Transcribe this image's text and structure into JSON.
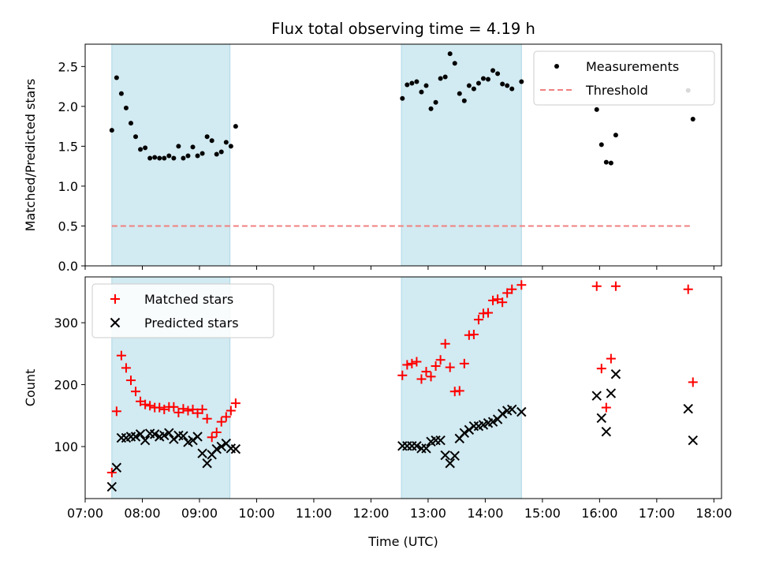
{
  "chart_data": [
    {
      "type": "scatter",
      "title": "Flux total observing time = 4.19 h",
      "xlabel": "",
      "ylabel": "Matched/Predicted stars",
      "xlim": [
        "07:00",
        "18:08"
      ],
      "ylim": [
        0,
        2.78
      ],
      "yticks": [
        0.0,
        0.5,
        1.0,
        1.5,
        2.0,
        2.5
      ],
      "ytick_labels": [
        "0.0",
        "0.5",
        "1.0",
        "1.5",
        "2.0",
        "2.5"
      ],
      "shaded_intervals": [
        [
          "07:28",
          "09:32"
        ],
        [
          "12:32",
          "14:38"
        ]
      ],
      "shade_color": "#add8e6",
      "legend": {
        "placement": "upper right",
        "entries": [
          "Measurements",
          "Threshold"
        ]
      },
      "series": [
        {
          "name": "Measurements",
          "marker": "dot",
          "color": "#000000",
          "points": [
            [
              "07:28",
              1.7
            ],
            [
              "07:33",
              2.36
            ],
            [
              "07:38",
              2.16
            ],
            [
              "07:43",
              1.98
            ],
            [
              "07:48",
              1.79
            ],
            [
              "07:53",
              1.62
            ],
            [
              "07:58",
              1.46
            ],
            [
              "08:03",
              1.48
            ],
            [
              "08:08",
              1.35
            ],
            [
              "08:13",
              1.36
            ],
            [
              "08:18",
              1.35
            ],
            [
              "08:23",
              1.35
            ],
            [
              "08:28",
              1.38
            ],
            [
              "08:33",
              1.35
            ],
            [
              "08:38",
              1.5
            ],
            [
              "08:43",
              1.35
            ],
            [
              "08:48",
              1.38
            ],
            [
              "08:53",
              1.49
            ],
            [
              "08:58",
              1.38
            ],
            [
              "09:03",
              1.41
            ],
            [
              "09:08",
              1.62
            ],
            [
              "09:13",
              1.57
            ],
            [
              "09:18",
              1.4
            ],
            [
              "09:23",
              1.43
            ],
            [
              "09:28",
              1.55
            ],
            [
              "09:33",
              1.5
            ],
            [
              "09:38",
              1.75
            ],
            [
              "12:33",
              2.1
            ],
            [
              "12:38",
              2.27
            ],
            [
              "12:43",
              2.29
            ],
            [
              "12:48",
              2.31
            ],
            [
              "12:53",
              2.18
            ],
            [
              "12:58",
              2.26
            ],
            [
              "13:03",
              1.97
            ],
            [
              "13:08",
              2.05
            ],
            [
              "13:13",
              2.35
            ],
            [
              "13:18",
              2.37
            ],
            [
              "13:23",
              2.66
            ],
            [
              "13:28",
              2.54
            ],
            [
              "13:33",
              2.16
            ],
            [
              "13:38",
              2.07
            ],
            [
              "13:43",
              2.26
            ],
            [
              "13:48",
              2.22
            ],
            [
              "13:53",
              2.29
            ],
            [
              "13:58",
              2.35
            ],
            [
              "14:03",
              2.34
            ],
            [
              "14:08",
              2.45
            ],
            [
              "14:13",
              2.41
            ],
            [
              "14:18",
              2.28
            ],
            [
              "14:23",
              2.26
            ],
            [
              "14:28",
              2.22
            ],
            [
              "14:38",
              2.31
            ],
            [
              "15:57",
              1.96
            ],
            [
              "16:02",
              1.52
            ],
            [
              "16:07",
              1.3
            ],
            [
              "16:12",
              1.29
            ],
            [
              "16:17",
              1.64
            ],
            [
              "17:33",
              2.2
            ],
            [
              "17:38",
              1.84
            ]
          ]
        },
        {
          "name": "Threshold",
          "style": "dashed-line",
          "color": "#f08080",
          "points": [
            [
              "07:28",
              0.5
            ],
            [
              "17:38",
              0.5
            ]
          ]
        }
      ]
    },
    {
      "type": "scatter",
      "title": "",
      "xlabel": "Time (UTC)",
      "ylabel": "Count",
      "xlim": [
        "07:00",
        "18:08"
      ],
      "ylim": [
        16,
        374
      ],
      "yticks": [
        100,
        200,
        300
      ],
      "ytick_labels": [
        "100",
        "200",
        "300"
      ],
      "xticks": [
        "07:00",
        "08:00",
        "09:00",
        "10:00",
        "11:00",
        "12:00",
        "13:00",
        "14:00",
        "15:00",
        "16:00",
        "17:00",
        "18:00"
      ],
      "xtick_labels": [
        "07:00",
        "08:00",
        "09:00",
        "10:00",
        "11:00",
        "12:00",
        "13:00",
        "14:00",
        "15:00",
        "16:00",
        "17:00",
        "18:00"
      ],
      "shaded_intervals": [
        [
          "07:28",
          "09:32"
        ],
        [
          "12:32",
          "14:38"
        ]
      ],
      "shade_color": "#add8e6",
      "legend": {
        "placement": "upper left",
        "entries": [
          "Matched stars",
          "Predicted stars"
        ]
      },
      "series": [
        {
          "name": "Matched stars",
          "marker": "plus",
          "color": "#ff0000",
          "points": [
            [
              "07:28",
              58
            ],
            [
              "07:33",
              157
            ],
            [
              "07:38",
              247
            ],
            [
              "07:43",
              227
            ],
            [
              "07:48",
              207
            ],
            [
              "07:53",
              189
            ],
            [
              "07:58",
              173
            ],
            [
              "08:03",
              168
            ],
            [
              "08:08",
              166
            ],
            [
              "08:13",
              163
            ],
            [
              "08:18",
              163
            ],
            [
              "08:23",
              160
            ],
            [
              "08:28",
              164
            ],
            [
              "08:33",
              164
            ],
            [
              "08:38",
              155
            ],
            [
              "08:43",
              161
            ],
            [
              "08:48",
              158
            ],
            [
              "08:53",
              160
            ],
            [
              "08:58",
              154
            ],
            [
              "09:03",
              160
            ],
            [
              "09:08",
              145
            ],
            [
              "09:13",
              115
            ],
            [
              "09:18",
              123
            ],
            [
              "09:23",
              140
            ],
            [
              "09:28",
              148
            ],
            [
              "09:33",
              158
            ],
            [
              "09:38",
              170
            ],
            [
              "12:33",
              215
            ],
            [
              "12:38",
              232
            ],
            [
              "12:43",
              234
            ],
            [
              "12:48",
              237
            ],
            [
              "12:53",
              209
            ],
            [
              "12:58",
              221
            ],
            [
              "13:03",
              213
            ],
            [
              "13:08",
              230
            ],
            [
              "13:13",
              240
            ],
            [
              "13:18",
              266
            ],
            [
              "13:23",
              228
            ],
            [
              "13:28",
              189
            ],
            [
              "13:33",
              190
            ],
            [
              "13:38",
              234
            ],
            [
              "13:43",
              280
            ],
            [
              "13:48",
              281
            ],
            [
              "13:53",
              305
            ],
            [
              "13:58",
              315
            ],
            [
              "14:03",
              316
            ],
            [
              "14:08",
              336
            ],
            [
              "14:13",
              338
            ],
            [
              "14:18",
              333
            ],
            [
              "14:23",
              348
            ],
            [
              "14:28",
              354
            ],
            [
              "14:38",
              361
            ],
            [
              "15:57",
              359
            ],
            [
              "16:02",
              226
            ],
            [
              "16:07",
              163
            ],
            [
              "16:12",
              242
            ],
            [
              "16:17",
              359
            ],
            [
              "17:33",
              354
            ],
            [
              "17:38",
              204
            ]
          ]
        },
        {
          "name": "Predicted stars",
          "marker": "x",
          "color": "#000000",
          "points": [
            [
              "07:28",
              35
            ],
            [
              "07:33",
              66
            ],
            [
              "07:38",
              114
            ],
            [
              "07:43",
              114
            ],
            [
              "07:48",
              116
            ],
            [
              "07:53",
              116
            ],
            [
              "07:58",
              120
            ],
            [
              "08:03",
              110
            ],
            [
              "08:08",
              121
            ],
            [
              "08:13",
              120
            ],
            [
              "08:18",
              116
            ],
            [
              "08:23",
              118
            ],
            [
              "08:28",
              122
            ],
            [
              "08:33",
              112
            ],
            [
              "08:38",
              118
            ],
            [
              "08:43",
              117
            ],
            [
              "08:48",
              107
            ],
            [
              "08:53",
              110
            ],
            [
              "08:58",
              116
            ],
            [
              "09:03",
              89
            ],
            [
              "09:08",
              73
            ],
            [
              "09:13",
              87
            ],
            [
              "09:18",
              96
            ],
            [
              "09:23",
              100
            ],
            [
              "09:28",
              105
            ],
            [
              "09:33",
              97
            ],
            [
              "09:38",
              96
            ],
            [
              "12:33",
              101
            ],
            [
              "12:38",
              101
            ],
            [
              "12:43",
              101
            ],
            [
              "12:48",
              101
            ],
            [
              "12:53",
              97
            ],
            [
              "12:58",
              97
            ],
            [
              "13:03",
              108
            ],
            [
              "13:08",
              110
            ],
            [
              "13:13",
              110
            ],
            [
              "13:18",
              86
            ],
            [
              "13:23",
              73
            ],
            [
              "13:28",
              85
            ],
            [
              "13:33",
              113
            ],
            [
              "13:38",
              122
            ],
            [
              "13:43",
              127
            ],
            [
              "13:48",
              133
            ],
            [
              "13:53",
              133
            ],
            [
              "13:58",
              135
            ],
            [
              "14:03",
              138
            ],
            [
              "14:08",
              140
            ],
            [
              "14:13",
              144
            ],
            [
              "14:18",
              153
            ],
            [
              "14:23",
              158
            ],
            [
              "14:28",
              160
            ],
            [
              "14:38",
              156
            ],
            [
              "15:57",
              182
            ],
            [
              "16:02",
              146
            ],
            [
              "16:07",
              124
            ],
            [
              "16:12",
              186
            ],
            [
              "16:17",
              217
            ],
            [
              "17:33",
              161
            ],
            [
              "17:38",
              110
            ]
          ]
        }
      ]
    }
  ]
}
